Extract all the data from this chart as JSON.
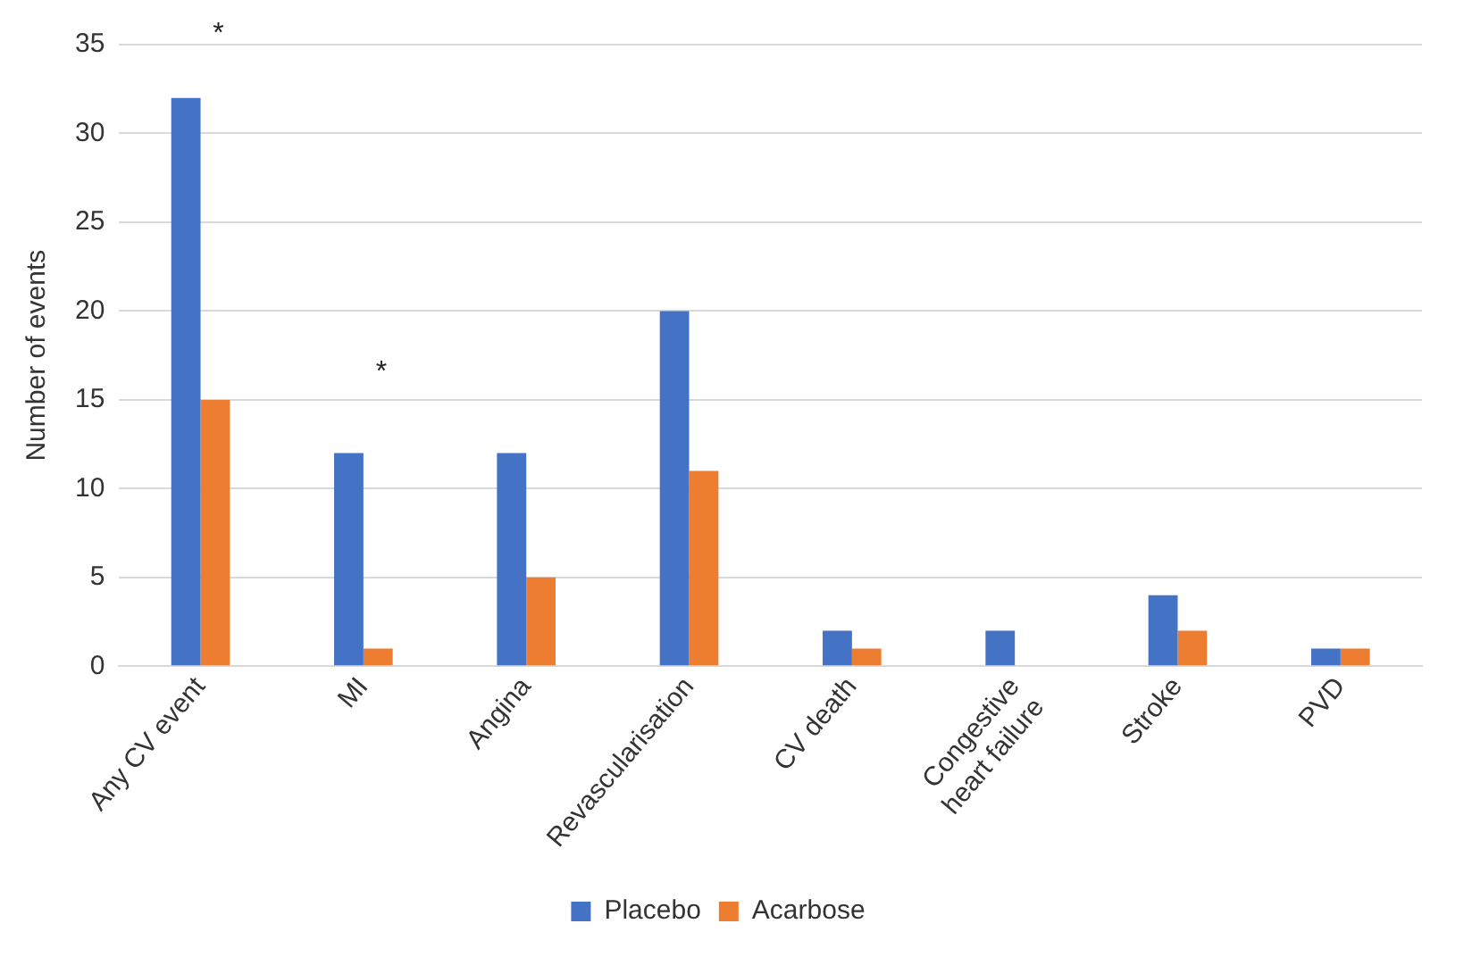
{
  "chart_data": {
    "type": "bar",
    "ylabel": "Number of events",
    "categories": [
      "Any CV event",
      "MI",
      "Angina",
      "Revascularisation",
      "CV death",
      "Congestive heart failure",
      "Stroke",
      "PVD"
    ],
    "series": [
      {
        "name": "Placebo",
        "color": "#4472c4",
        "values": [
          32,
          12,
          12,
          20,
          2,
          2,
          4,
          1
        ]
      },
      {
        "name": "Acarbose",
        "color": "#ed7d31",
        "values": [
          15,
          1,
          5,
          11,
          1,
          0,
          2,
          1
        ]
      }
    ],
    "ylim": [
      0,
      35
    ],
    "yticks": [
      0,
      5,
      10,
      15,
      20,
      25,
      30,
      35
    ],
    "grid": "y",
    "legend": "bottom",
    "annotations": [
      "*",
      "*"
    ]
  }
}
